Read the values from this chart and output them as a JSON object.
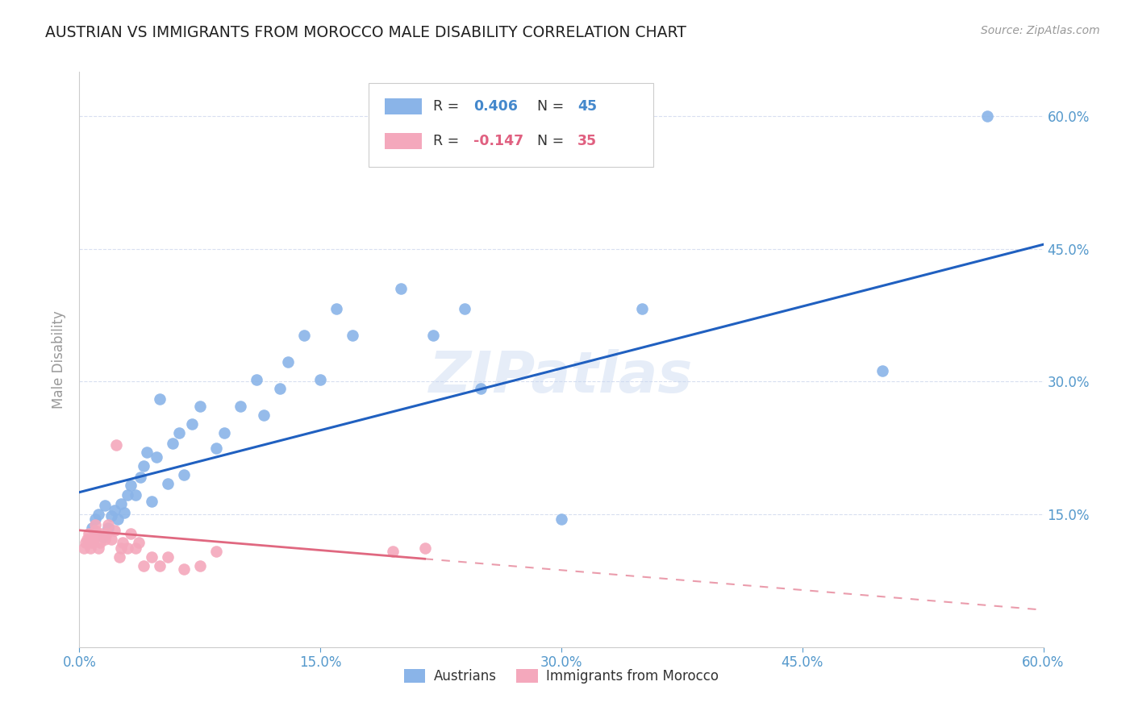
{
  "title": "AUSTRIAN VS IMMIGRANTS FROM MOROCCO MALE DISABILITY CORRELATION CHART",
  "source": "Source: ZipAtlas.com",
  "ylabel": "Male Disability",
  "xlim": [
    0.0,
    0.6
  ],
  "ylim": [
    0.0,
    0.65
  ],
  "xticks": [
    0.0,
    0.15,
    0.3,
    0.45,
    0.6
  ],
  "xtick_labels": [
    "0.0%",
    "15.0%",
    "30.0%",
    "45.0%",
    "60.0%"
  ],
  "yticks": [
    0.15,
    0.3,
    0.45,
    0.6
  ],
  "ytick_labels": [
    "15.0%",
    "30.0%",
    "45.0%",
    "60.0%"
  ],
  "watermark": "ZIPatlas",
  "austrians_color": "#8ab4e8",
  "morocco_color": "#f4a8bc",
  "trendline_austrians_color": "#2060c0",
  "trendline_morocco_color": "#e06880",
  "background_color": "#ffffff",
  "grid_color": "#d8dff0",
  "axis_label_color": "#5599cc",
  "austrians_x": [
    0.008,
    0.01,
    0.012,
    0.015,
    0.016,
    0.018,
    0.02,
    0.022,
    0.024,
    0.026,
    0.028,
    0.03,
    0.032,
    0.035,
    0.038,
    0.04,
    0.042,
    0.045,
    0.048,
    0.05,
    0.055,
    0.058,
    0.062,
    0.065,
    0.07,
    0.075,
    0.085,
    0.09,
    0.1,
    0.11,
    0.115,
    0.125,
    0.13,
    0.14,
    0.15,
    0.16,
    0.17,
    0.2,
    0.22,
    0.24,
    0.25,
    0.3,
    0.35,
    0.5,
    0.565
  ],
  "austrians_y": [
    0.135,
    0.145,
    0.15,
    0.125,
    0.16,
    0.135,
    0.148,
    0.155,
    0.145,
    0.162,
    0.152,
    0.172,
    0.183,
    0.172,
    0.192,
    0.205,
    0.22,
    0.165,
    0.215,
    0.28,
    0.185,
    0.23,
    0.242,
    0.195,
    0.252,
    0.272,
    0.225,
    0.242,
    0.272,
    0.302,
    0.262,
    0.292,
    0.322,
    0.352,
    0.302,
    0.382,
    0.352,
    0.405,
    0.352,
    0.382,
    0.292,
    0.145,
    0.382,
    0.312,
    0.6
  ],
  "morocco_x": [
    0.003,
    0.004,
    0.005,
    0.006,
    0.007,
    0.008,
    0.009,
    0.01,
    0.01,
    0.01,
    0.012,
    0.013,
    0.014,
    0.016,
    0.017,
    0.018,
    0.02,
    0.022,
    0.023,
    0.025,
    0.026,
    0.027,
    0.03,
    0.032,
    0.035,
    0.037,
    0.04,
    0.045,
    0.05,
    0.055,
    0.065,
    0.075,
    0.085,
    0.195,
    0.215
  ],
  "morocco_y": [
    0.112,
    0.118,
    0.122,
    0.128,
    0.112,
    0.118,
    0.122,
    0.128,
    0.132,
    0.138,
    0.112,
    0.118,
    0.128,
    0.122,
    0.128,
    0.138,
    0.122,
    0.132,
    0.228,
    0.102,
    0.112,
    0.118,
    0.112,
    0.128,
    0.112,
    0.118,
    0.092,
    0.102,
    0.092,
    0.102,
    0.088,
    0.092,
    0.108,
    0.108,
    0.112
  ],
  "trend_aust_x0": 0.0,
  "trend_aust_x1": 0.6,
  "trend_aust_y0": 0.175,
  "trend_aust_y1": 0.455,
  "trend_mor_x0": 0.0,
  "trend_mor_x1": 0.6,
  "trend_mor_y0": 0.132,
  "trend_mor_y1": 0.042,
  "trend_mor_solid_end": 0.215
}
